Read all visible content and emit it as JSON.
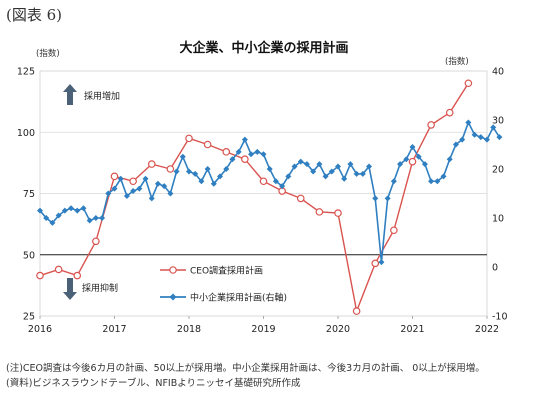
{
  "figure_label": "(図表 6)",
  "notes": {
    "note": "(注)CEO調査は今後6カ月の計画、50以上が採用増。中小企業採用計画は、今後3カ月の計画、 0以上が採用増。",
    "source": "(資料)ビジネスラウンドテーブル、NFIBよりニッセイ基礎研究所作成"
  },
  "chart_data": {
    "type": "line",
    "title": "大企業、中小企業の採用計画",
    "left_axis": {
      "unit_label": "(指数)",
      "ylim": [
        25,
        125
      ],
      "ticks": [
        25,
        50,
        75,
        100,
        125
      ]
    },
    "right_axis": {
      "unit_label": "(指数)",
      "ylim": [
        -10,
        40
      ],
      "ticks": [
        -10,
        0,
        10,
        20,
        30,
        40
      ]
    },
    "x_axis": {
      "ticks": [
        "2016",
        "2017",
        "2018",
        "2019",
        "2020",
        "2021",
        "2022"
      ],
      "xlim": [
        2016,
        2022
      ]
    },
    "reference_line": {
      "axis": "left",
      "value": 50
    },
    "annotations": {
      "up_arrow_label": "採用増加",
      "down_arrow_label": "採用抑制"
    },
    "legend_position": "center",
    "series": [
      {
        "name": "CEO調査採用計画",
        "axis": "left",
        "color": "#d9534f",
        "marker": "hollow-circle",
        "points": [
          [
            2016.0,
            41.5
          ],
          [
            2016.25,
            44
          ],
          [
            2016.5,
            41.5
          ],
          [
            2016.75,
            55.5
          ],
          [
            2017.0,
            82
          ],
          [
            2017.25,
            80
          ],
          [
            2017.5,
            87
          ],
          [
            2017.75,
            85
          ],
          [
            2018.0,
            97.5
          ],
          [
            2018.25,
            95
          ],
          [
            2018.5,
            92
          ],
          [
            2018.75,
            89
          ],
          [
            2019.0,
            80
          ],
          [
            2019.25,
            76
          ],
          [
            2019.5,
            73
          ],
          [
            2019.75,
            67.5
          ],
          [
            2020.0,
            67
          ],
          [
            2020.25,
            27
          ],
          [
            2020.5,
            46.5
          ],
          [
            2020.75,
            60
          ],
          [
            2021.0,
            88
          ],
          [
            2021.25,
            103
          ],
          [
            2021.5,
            108
          ],
          [
            2021.75,
            120
          ]
        ]
      },
      {
        "name": "中小企業採用計画(右軸)",
        "axis": "right",
        "color": "#2f7fc1",
        "marker": "diamond",
        "values_start": 2016.0,
        "values_step": 0.08333,
        "values": [
          11.5,
          10,
          9,
          10.5,
          11.5,
          12,
          11.5,
          12,
          9.5,
          10,
          10,
          15,
          16,
          18,
          14.5,
          15.5,
          16,
          18,
          14,
          17,
          16.5,
          15,
          19.5,
          22.5,
          19.5,
          19,
          17.5,
          20,
          17,
          18.5,
          20,
          22,
          23.5,
          26,
          23,
          23.5,
          23,
          20,
          17.5,
          16.5,
          18.5,
          20.5,
          21.5,
          21,
          19.5,
          21,
          18.5,
          19.5,
          20.5,
          18,
          21,
          19,
          19,
          20.5,
          14,
          1,
          14,
          17.5,
          21,
          22,
          24.5,
          22.5,
          21,
          17.5,
          17.5,
          18.5,
          22,
          25,
          26,
          29.5,
          27,
          26.5,
          26,
          28.5,
          26.5
        ]
      }
    ]
  }
}
